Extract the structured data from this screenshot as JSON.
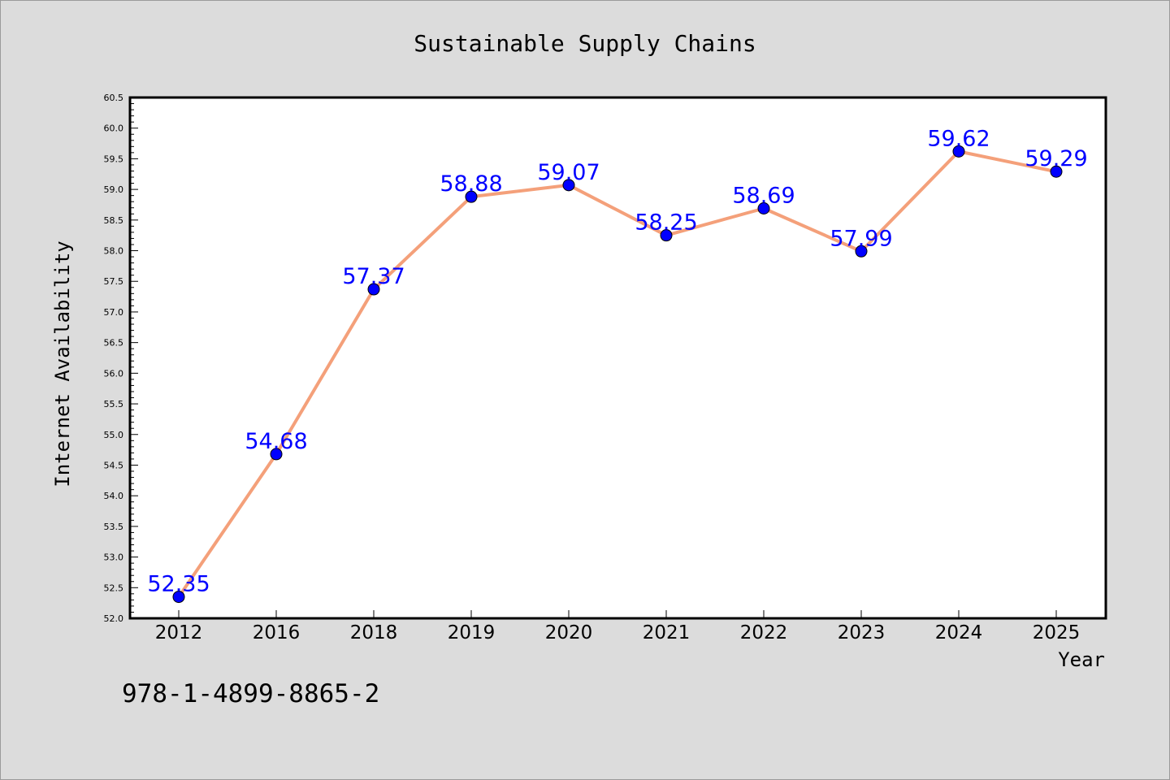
{
  "chart_data": {
    "type": "line",
    "title": "Sustainable Supply Chains",
    "xlabel": "Year",
    "ylabel": "Internet Availability",
    "categories": [
      "2012",
      "2016",
      "2018",
      "2019",
      "2020",
      "2021",
      "2022",
      "2023",
      "2024",
      "2025"
    ],
    "series": [
      {
        "values": [
          52.35,
          54.68,
          57.37,
          58.88,
          59.07,
          58.25,
          58.69,
          57.99,
          59.62,
          59.29
        ],
        "value_labels": [
          "52.35",
          "54.68",
          "57.37",
          "58.88",
          "59.07",
          "58.25",
          "58.69",
          "57.99",
          "59.62",
          "59.29"
        ],
        "line_color": "#f4a07a",
        "marker_color": "#0000ff"
      }
    ],
    "ylim": [
      52.0,
      60.5
    ],
    "yticks": [
      "52.0",
      "52.5",
      "53.0",
      "53.5",
      "54.0",
      "54.5",
      "55.0",
      "55.5",
      "56.0",
      "56.5",
      "57.0",
      "57.5",
      "58.0",
      "58.5",
      "59.0",
      "59.5",
      "60.0",
      "60.5"
    ],
    "grid": false,
    "label_color": "#0000ff"
  },
  "annotation": "978-1-4899-8865-2"
}
